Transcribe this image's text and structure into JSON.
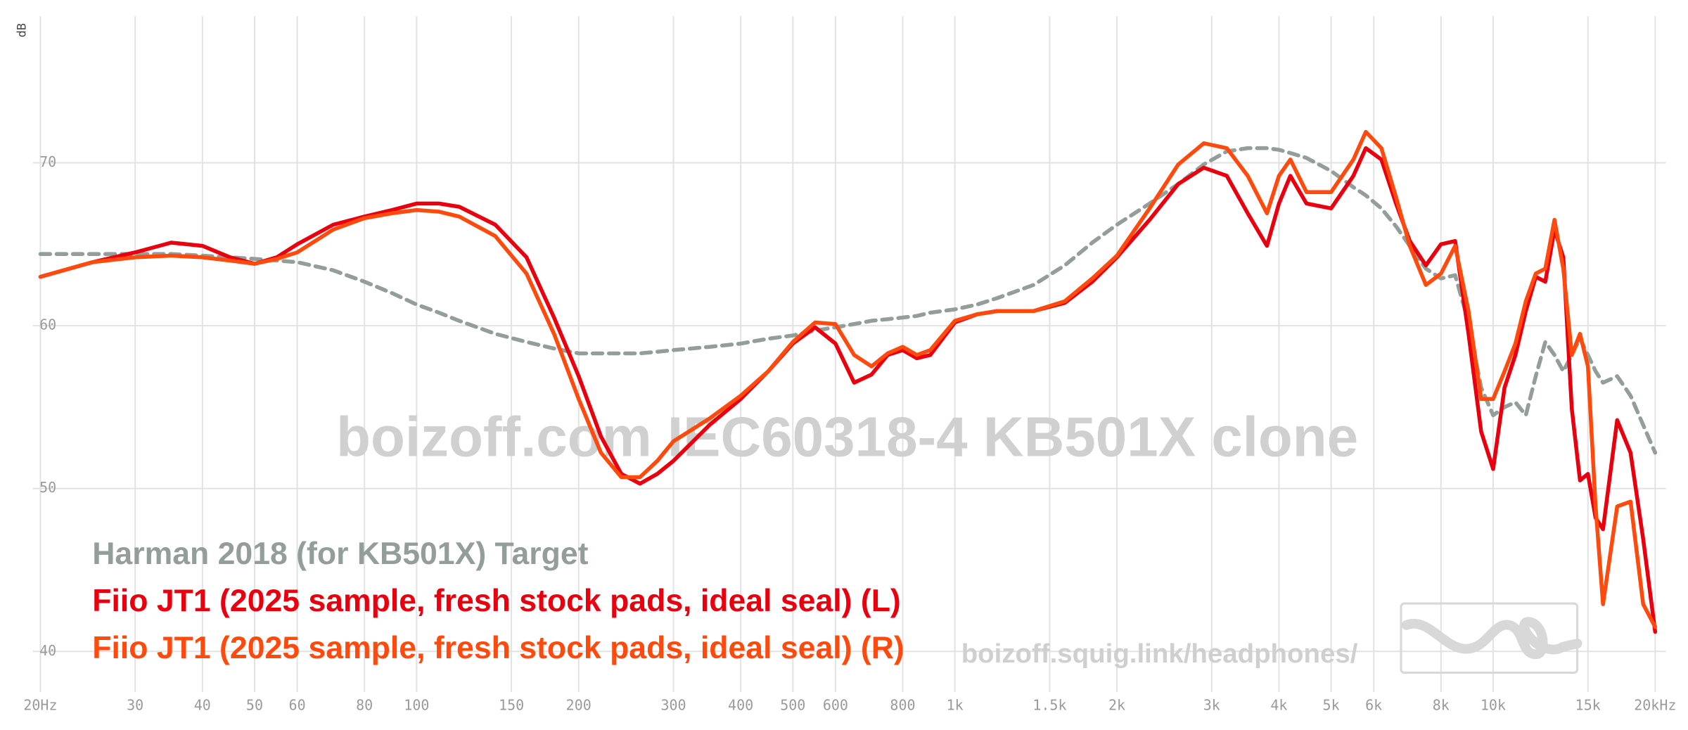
{
  "chart_data": {
    "type": "line",
    "y_label": "dB",
    "watermark": "boizoff.com IEC60318-4 KB501X clone",
    "url": "boizoff.squig.link/headphones/",
    "xscale": "log",
    "xlim": [
      20,
      20000
    ],
    "ylim": [
      37.5,
      79
    ],
    "grid": true,
    "xticks": [
      {
        "value": 20,
        "label": "20Hz"
      },
      30,
      40,
      50,
      60,
      80,
      100,
      150,
      200,
      300,
      400,
      500,
      600,
      800,
      {
        "value": 1000,
        "label": "1k"
      },
      {
        "value": 1500,
        "label": "1.5k"
      },
      {
        "value": 2000,
        "label": "2k"
      },
      {
        "value": 3000,
        "label": "3k"
      },
      {
        "value": 4000,
        "label": "4k"
      },
      {
        "value": 5000,
        "label": "5k"
      },
      {
        "value": 6000,
        "label": "6k"
      },
      {
        "value": 8000,
        "label": "8k"
      },
      {
        "value": 10000,
        "label": "10k"
      },
      {
        "value": 15000,
        "label": "15k"
      },
      {
        "value": 20000,
        "label": "20kHz"
      }
    ],
    "yticks": [
      40,
      50,
      60,
      70
    ],
    "x": [
      20,
      25,
      30,
      35,
      40,
      45,
      50,
      55,
      60,
      70,
      80,
      90,
      100,
      110,
      120,
      140,
      160,
      180,
      200,
      220,
      240,
      260,
      280,
      300,
      350,
      400,
      450,
      500,
      550,
      600,
      650,
      700,
      750,
      800,
      850,
      900,
      1000,
      1100,
      1200,
      1400,
      1600,
      1800,
      2000,
      2300,
      2600,
      2900,
      3200,
      3500,
      3800,
      4000,
      4200,
      4500,
      5000,
      5500,
      5800,
      6200,
      6600,
      7000,
      7500,
      8000,
      8500,
      9000,
      9500,
      10000,
      10500,
      11000,
      11500,
      12000,
      12500,
      13000,
      13500,
      14000,
      14500,
      15000,
      15500,
      16000,
      17000,
      18000,
      19000,
      20000
    ],
    "series": [
      {
        "name": "Harman 2018 (for KB501X) Target",
        "color": "#939e9a",
        "dash": true,
        "values": [
          64.4,
          64.4,
          64.4,
          64.4,
          64.3,
          64.2,
          64.1,
          64.0,
          63.9,
          63.4,
          62.7,
          62.0,
          61.3,
          60.8,
          60.3,
          59.5,
          59.0,
          58.6,
          58.3,
          58.3,
          58.3,
          58.3,
          58.4,
          58.5,
          58.7,
          58.9,
          59.2,
          59.4,
          59.7,
          59.9,
          60.1,
          60.3,
          60.4,
          60.5,
          60.6,
          60.8,
          61.0,
          61.3,
          61.7,
          62.5,
          63.7,
          65.1,
          66.2,
          67.5,
          68.7,
          69.9,
          70.7,
          70.9,
          70.9,
          70.8,
          70.6,
          70.3,
          69.5,
          68.5,
          68.0,
          67.2,
          66.1,
          64.9,
          63.5,
          62.9,
          63.1,
          60.2,
          56.2,
          54.5,
          55.0,
          55.3,
          54.5,
          56.9,
          59.0,
          58.2,
          57.2,
          58.2,
          59.2,
          58.2,
          57.2,
          56.5,
          56.9,
          55.7,
          53.9,
          52.2
        ]
      },
      {
        "name": "Fiio JT1 (2025 sample, fresh stock pads, ideal seal) (L)",
        "color": "#e8000f",
        "dash": false,
        "values": [
          63.0,
          63.9,
          64.5,
          65.1,
          64.9,
          64.2,
          63.8,
          64.2,
          65.0,
          66.2,
          66.7,
          67.1,
          67.5,
          67.5,
          67.3,
          66.2,
          64.2,
          60.5,
          56.9,
          53.2,
          50.9,
          50.3,
          50.9,
          51.7,
          53.9,
          55.5,
          57.2,
          58.9,
          59.9,
          58.9,
          56.5,
          57.0,
          58.2,
          58.5,
          58.0,
          58.2,
          60.2,
          60.7,
          60.9,
          60.9,
          61.4,
          62.7,
          64.2,
          66.5,
          68.7,
          69.7,
          69.2,
          66.9,
          64.9,
          67.5,
          69.2,
          67.5,
          67.2,
          69.2,
          70.9,
          70.2,
          67.5,
          65.2,
          63.7,
          65.0,
          65.2,
          59.5,
          53.5,
          51.2,
          56.2,
          58.2,
          60.9,
          63.0,
          62.7,
          65.9,
          64.2,
          54.9,
          50.5,
          50.9,
          48.2,
          47.5,
          54.2,
          52.2,
          46.9,
          41.2
        ]
      },
      {
        "name": "Fiio JT1 (2025 sample, fresh stock pads, ideal seal) (R)",
        "color": "#ff4a0d",
        "dash": false,
        "values": [
          63.0,
          63.9,
          64.2,
          64.3,
          64.2,
          64.0,
          63.8,
          64.1,
          64.5,
          65.9,
          66.6,
          66.9,
          67.1,
          67.0,
          66.7,
          65.5,
          63.2,
          59.5,
          55.5,
          52.2,
          50.7,
          50.7,
          51.7,
          52.9,
          54.3,
          55.7,
          57.2,
          59.0,
          60.2,
          60.1,
          58.2,
          57.5,
          58.3,
          58.7,
          58.2,
          58.5,
          60.3,
          60.7,
          60.9,
          60.9,
          61.5,
          62.9,
          64.3,
          67.2,
          69.9,
          71.2,
          70.9,
          69.2,
          66.9,
          69.2,
          70.2,
          68.2,
          68.2,
          70.2,
          71.9,
          70.9,
          67.9,
          64.9,
          62.5,
          63.2,
          64.9,
          60.9,
          55.5,
          55.5,
          57.2,
          58.9,
          61.5,
          63.2,
          63.5,
          66.5,
          63.5,
          58.2,
          59.5,
          57.5,
          48.9,
          42.9,
          48.9,
          49.2,
          42.9,
          41.5
        ]
      }
    ]
  }
}
